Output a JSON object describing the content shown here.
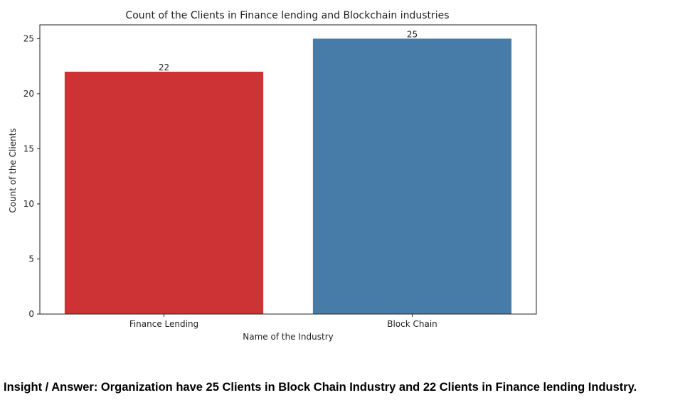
{
  "chart_data": {
    "type": "bar",
    "title": "Count of the Clients in Finance lending and Blockchain industries",
    "xlabel": "Name of the Industry",
    "ylabel": "Count of the Clients",
    "categories": [
      "Finance Lending",
      "Block Chain"
    ],
    "values": [
      22,
      25
    ],
    "data_labels": [
      "22",
      "25"
    ],
    "colors": [
      "#cd3334",
      "#477ca8"
    ],
    "ylim": [
      0,
      26.25
    ],
    "yticks": [
      0,
      5,
      10,
      15,
      20,
      25
    ],
    "grid": false,
    "legend": "none"
  },
  "insight": {
    "text": "Insight / Answer: Organization have 25 Clients in Block Chain Industry and 22 Clients in Finance lending Industry."
  }
}
